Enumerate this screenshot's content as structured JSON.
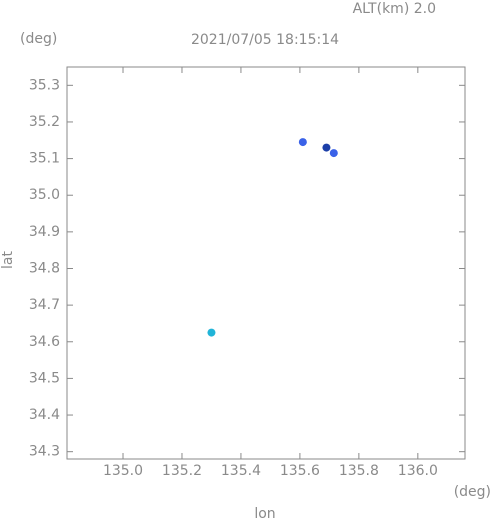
{
  "chart_data": {
    "type": "scatter",
    "title": "2021/07/05 18:15:14",
    "subtitle": "ALT(km) 2.0",
    "y_unit": "(deg)",
    "x_unit": "(deg)",
    "x_label": "lon",
    "y_label": "lat",
    "x": [
      135.61,
      135.69,
      135.715,
      135.3
    ],
    "values": [
      35.145,
      35.13,
      35.115,
      34.625
    ],
    "colors": [
      "#3a62e8",
      "#1c3fa8",
      "#3a62e8",
      "#20b4d8"
    ],
    "xlim": [
      134.81,
      136.16
    ],
    "ylim": [
      34.28,
      35.35
    ],
    "xticks": [
      {
        "value": 135,
        "label": "135.0"
      },
      135.2,
      135.4,
      135.6,
      135.8,
      {
        "value": 136,
        "label": "136.0"
      }
    ],
    "yticks": [
      34.3,
      34.4,
      34.5,
      34.6,
      34.7,
      34.8,
      34.9,
      {
        "value": 35,
        "label": "35.0"
      },
      35.1,
      35.2,
      35.3
    ]
  }
}
